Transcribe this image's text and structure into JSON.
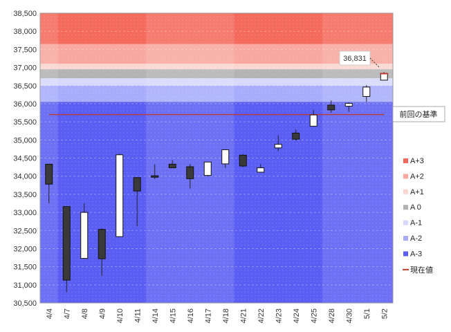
{
  "chart_data": {
    "type": "candlestick",
    "categories": [
      "4/4",
      "4/7",
      "4/8",
      "4/9",
      "4/10",
      "4/11",
      "4/14",
      "4/15",
      "4/16",
      "4/17",
      "4/18",
      "4/21",
      "4/22",
      "4/23",
      "4/24",
      "4/25",
      "4/28",
      "4/30",
      "5/1",
      "5/2"
    ],
    "ohlc": [
      {
        "open": 34330,
        "high": 34330,
        "low": 33250,
        "close": 33780
      },
      {
        "open": 33160,
        "high": 33160,
        "low": 30800,
        "close": 31130
      },
      {
        "open": 31730,
        "high": 33250,
        "low": 31730,
        "close": 33000
      },
      {
        "open": 32530,
        "high": 32560,
        "low": 31250,
        "close": 31720
      },
      {
        "open": 32330,
        "high": 34620,
        "low": 32330,
        "close": 34590
      },
      {
        "open": 33960,
        "high": 33960,
        "low": 32620,
        "close": 33590
      },
      {
        "open": 34010,
        "high": 34330,
        "low": 33920,
        "close": 33970
      },
      {
        "open": 34330,
        "high": 34440,
        "low": 34220,
        "close": 34230
      },
      {
        "open": 34260,
        "high": 34330,
        "low": 33660,
        "close": 33930
      },
      {
        "open": 34020,
        "high": 34400,
        "low": 33990,
        "close": 34390
      },
      {
        "open": 34340,
        "high": 34730,
        "low": 34230,
        "close": 34730
      },
      {
        "open": 34580,
        "high": 34600,
        "low": 34250,
        "close": 34280
      },
      {
        "open": 34110,
        "high": 34330,
        "low": 34110,
        "close": 34230
      },
      {
        "open": 34780,
        "high": 35130,
        "low": 34690,
        "close": 34880
      },
      {
        "open": 35190,
        "high": 35290,
        "low": 34980,
        "close": 35020
      },
      {
        "open": 35380,
        "high": 35830,
        "low": 35380,
        "close": 35690
      },
      {
        "open": 35960,
        "high": 36090,
        "low": 35750,
        "close": 35830
      },
      {
        "open": 35930,
        "high": 36040,
        "low": 35780,
        "close": 36010
      },
      {
        "open": 36200,
        "high": 36510,
        "low": 36050,
        "close": 36460
      },
      {
        "open": 36650,
        "high": 36870,
        "low": 36650,
        "close": 36831
      }
    ],
    "ylim": [
      30500,
      38500
    ],
    "yticks": [
      "30,500",
      "31,000",
      "31,500",
      "32,000",
      "32,500",
      "33,000",
      "33,500",
      "34,000",
      "34,500",
      "35,000",
      "35,500",
      "36,000",
      "36,500",
      "37,000",
      "37,500",
      "38,000",
      "38,500"
    ],
    "bands": [
      {
        "name": "A+3",
        "from": 37650,
        "to": 38500,
        "color": "#f46a5c"
      },
      {
        "name": "A+2",
        "from": 37100,
        "to": 37650,
        "color": "#f8a89e"
      },
      {
        "name": "A+1",
        "from": 36950,
        "to": 37100,
        "color": "#fbd5d0"
      },
      {
        "name": "A 0",
        "from": 36700,
        "to": 36950,
        "color": "#b3b3b3"
      },
      {
        "name": "A-1",
        "from": 36500,
        "to": 36700,
        "color": "#d6d9fd"
      },
      {
        "name": "A-2",
        "from": 36050,
        "to": 36500,
        "color": "#a8acfb"
      },
      {
        "name": "A-3",
        "from": 30500,
        "to": 36050,
        "color": "#5a5ef3"
      }
    ],
    "reference_line": {
      "label": "前回の基準",
      "value": 35700,
      "color": "#c0392b"
    },
    "current_value": {
      "label": "現在値",
      "value": 36831,
      "display": "36,831",
      "color": "#c0392b"
    },
    "legend": {
      "position": "right",
      "entries": [
        "A+3",
        "A+2",
        "A+1",
        "A 0",
        "A-1",
        "A-2",
        "A-3",
        "現在値"
      ]
    },
    "grid": true,
    "colors": {
      "up_body": "#ffffff",
      "down_body": "#3a3a3a",
      "wick": "#222222"
    }
  }
}
